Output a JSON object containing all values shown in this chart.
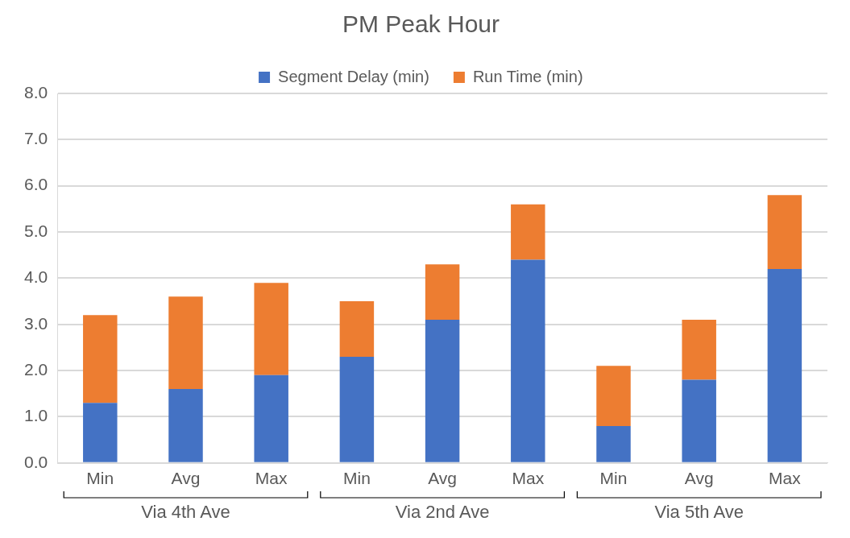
{
  "chart_data": {
    "type": "bar",
    "title": "PM Peak Hour",
    "categories": [
      "Min",
      "Avg",
      "Max",
      "Min",
      "Avg",
      "Max",
      "Min",
      "Avg",
      "Max"
    ],
    "series": [
      {
        "name": "Segment Delay (min)",
        "color": "#4472c4",
        "values": [
          1.3,
          1.6,
          1.9,
          2.3,
          3.1,
          4.4,
          0.8,
          1.8,
          4.2
        ]
      },
      {
        "name": "Run Time (min)",
        "color": "#ed7d31",
        "values": [
          1.9,
          2.0,
          2.0,
          1.2,
          1.2,
          1.2,
          1.3,
          1.3,
          1.6
        ]
      }
    ],
    "stacked": true,
    "ylim": [
      0,
      8
    ],
    "yticks": [
      {
        "value": 0,
        "label": "0.0"
      },
      {
        "value": 1,
        "label": "1.0"
      },
      {
        "value": 2,
        "label": "2.0"
      },
      {
        "value": 3,
        "label": "3.0"
      },
      {
        "value": 4,
        "label": "4.0"
      },
      {
        "value": 5,
        "label": "5.0"
      },
      {
        "value": 6,
        "label": "6.0"
      },
      {
        "value": 7,
        "label": "7.0"
      },
      {
        "value": 8,
        "label": "8.0"
      }
    ],
    "grid": "y",
    "legend": "top",
    "annotations": [
      "Via 4th Ave",
      "Via 2nd Ave",
      "Via 5th Ave"
    ]
  }
}
